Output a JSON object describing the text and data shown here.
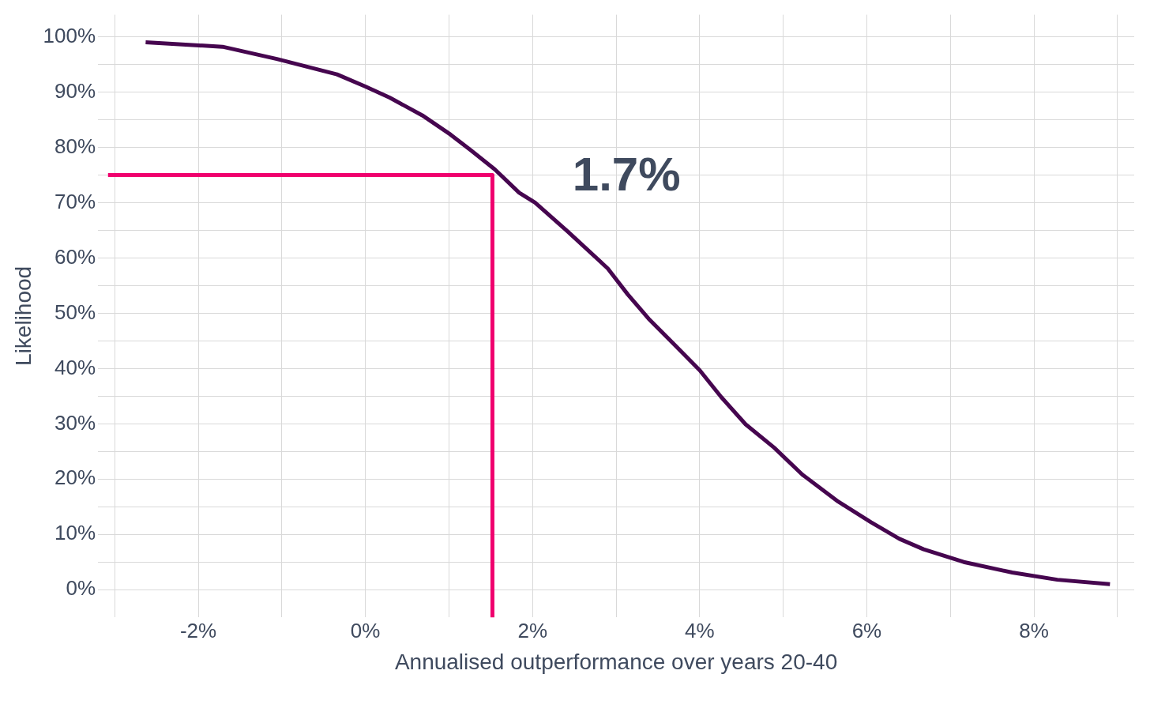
{
  "chart_data": {
    "type": "line",
    "xlabel": "Annualised outperformance over years 20-40",
    "ylabel": "Likelihood",
    "xlim": [
      -3.2,
      9.2
    ],
    "ylim": [
      -5,
      104
    ],
    "xticks": [
      {
        "value": -3,
        "label": null
      },
      {
        "value": -2,
        "label": "-2%"
      },
      {
        "value": -1,
        "label": null
      },
      {
        "value": 0,
        "label": "0%"
      },
      {
        "value": 1,
        "label": null
      },
      {
        "value": 2,
        "label": "2%"
      },
      {
        "value": 3,
        "label": null
      },
      {
        "value": 4,
        "label": "4%"
      },
      {
        "value": 5,
        "label": null
      },
      {
        "value": 6,
        "label": "6%"
      },
      {
        "value": 7,
        "label": null
      },
      {
        "value": 8,
        "label": "8%"
      },
      {
        "value": 9,
        "label": null
      }
    ],
    "yticks": [
      {
        "value": 0,
        "label": "0%"
      },
      {
        "value": 5,
        "label": null
      },
      {
        "value": 10,
        "label": "10%"
      },
      {
        "value": 15,
        "label": null
      },
      {
        "value": 20,
        "label": "20%"
      },
      {
        "value": 25,
        "label": null
      },
      {
        "value": 30,
        "label": "30%"
      },
      {
        "value": 35,
        "label": null
      },
      {
        "value": 40,
        "label": "40%"
      },
      {
        "value": 45,
        "label": null
      },
      {
        "value": 50,
        "label": "50%"
      },
      {
        "value": 55,
        "label": null
      },
      {
        "value": 60,
        "label": "60%"
      },
      {
        "value": 65,
        "label": null
      },
      {
        "value": 70,
        "label": "70%"
      },
      {
        "value": 75,
        "label": null
      },
      {
        "value": 80,
        "label": "80%"
      },
      {
        "value": 85,
        "label": null
      },
      {
        "value": 90,
        "label": "90%"
      },
      {
        "value": 95,
        "label": null
      },
      {
        "value": 100,
        "label": "100%"
      }
    ],
    "grid": true,
    "marker": "none",
    "line_style": "solid",
    "legend": false,
    "series": [
      {
        "color": "#46064f",
        "x": [
          -2.63,
          -1.71,
          -1.06,
          -0.34,
          0,
          0.29,
          0.68,
          1.02,
          1.26,
          1.55,
          1.84,
          2.03,
          2.42,
          2.9,
          3.14,
          3.39,
          3.68,
          4,
          4.26,
          4.55,
          4.89,
          5.23,
          5.66,
          6.05,
          6.39,
          6.68,
          7.16,
          7.74,
          8.28,
          8.91
        ],
        "values": [
          99,
          98.2,
          96,
          93.2,
          91,
          89,
          85.8,
          82.3,
          79.5,
          76,
          71.8,
          70,
          64.8,
          58.1,
          53.4,
          49,
          44.6,
          39.7,
          34.8,
          29.9,
          25.7,
          20.8,
          15.9,
          12.2,
          9.2,
          7.3,
          5,
          3.1,
          1.8,
          1
        ]
      },
      {
        "color": "#f0006e",
        "x": [
          -3.08,
          1.52,
          1.52
        ],
        "values": [
          75,
          75,
          -5
        ]
      }
    ],
    "annotations": [
      "1.7%"
    ]
  }
}
